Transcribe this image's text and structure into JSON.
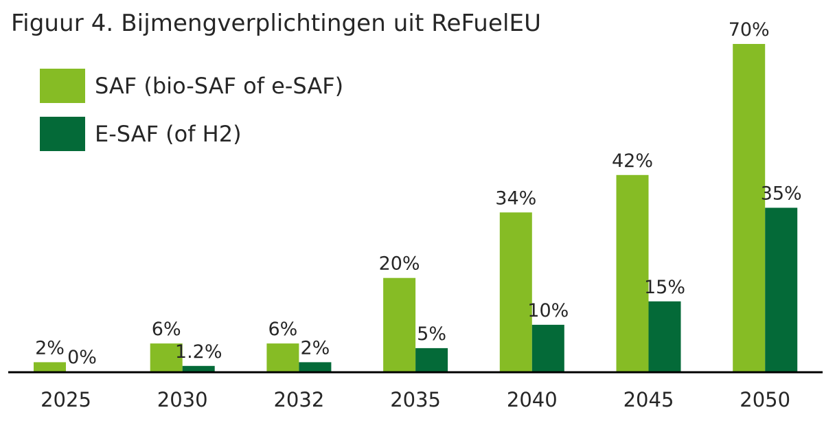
{
  "title": "Figuur 4. Bijmengverplichtingen uit ReFuelEU",
  "chart_data": {
    "type": "bar",
    "title": "Figuur 4. Bijmengverplichtingen uit ReFuelEU",
    "xlabel": "",
    "ylabel": "",
    "categories": [
      "2025",
      "2030",
      "2032",
      "2035",
      "2040",
      "2045",
      "2050"
    ],
    "series": [
      {
        "name": "SAF (bio-SAF of e-SAF)",
        "color": "#86BC25",
        "values": [
          2,
          6,
          6,
          20,
          34,
          42,
          70
        ],
        "labels": [
          "2%",
          "6%",
          "6%",
          "20%",
          "34%",
          "42%",
          "70%"
        ]
      },
      {
        "name": "E-SAF (of H2)",
        "color": "#046A38",
        "values": [
          0,
          1.2,
          2,
          5,
          10,
          15,
          35
        ],
        "labels": [
          "0%",
          "1.2%",
          "2%",
          "5%",
          "10%",
          "15%",
          "35%"
        ]
      }
    ],
    "ylim": [
      0,
      70
    ],
    "grid": false,
    "legend_position": "top-left",
    "axis_color": "#000000"
  }
}
